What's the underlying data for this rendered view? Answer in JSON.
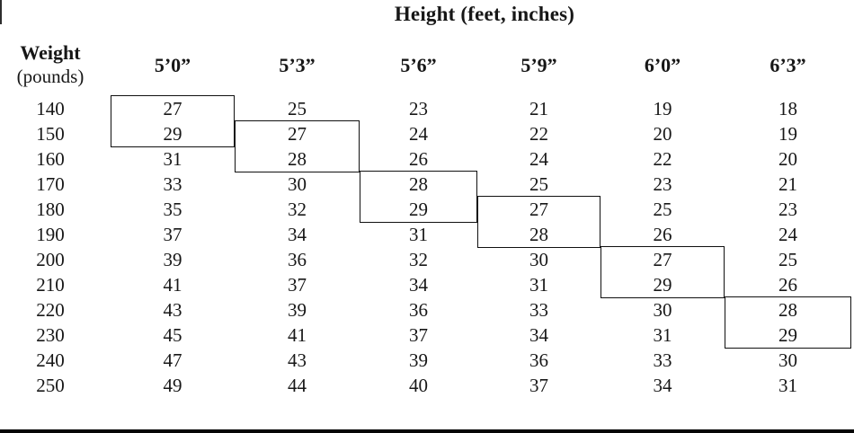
{
  "weight_header": {
    "line1": "Weight",
    "line2": "(pounds)"
  },
  "chart_data": {
    "type": "table",
    "title": "Height (feet, inches)",
    "row_axis_label": "Weight (pounds)",
    "columns": [
      "5’0”",
      "5’3”",
      "5’6”",
      "5’9”",
      "6’0”",
      "6’3”"
    ],
    "weights": [
      140,
      150,
      160,
      170,
      180,
      190,
      200,
      210,
      220,
      230,
      240,
      250
    ],
    "values": [
      [
        27,
        25,
        23,
        21,
        19,
        18
      ],
      [
        29,
        27,
        24,
        22,
        20,
        19
      ],
      [
        31,
        28,
        26,
        24,
        22,
        20
      ],
      [
        33,
        30,
        28,
        25,
        23,
        21
      ],
      [
        35,
        32,
        29,
        27,
        25,
        23
      ],
      [
        37,
        34,
        31,
        28,
        26,
        24
      ],
      [
        39,
        36,
        32,
        30,
        27,
        25
      ],
      [
        41,
        37,
        34,
        31,
        29,
        26
      ],
      [
        43,
        39,
        36,
        33,
        30,
        28
      ],
      [
        45,
        41,
        37,
        34,
        31,
        29
      ],
      [
        47,
        43,
        39,
        36,
        33,
        30
      ],
      [
        49,
        44,
        40,
        37,
        34,
        31
      ]
    ],
    "highlight_boxes": [
      {
        "column": "5’0”",
        "col_index": 0,
        "weight_start": 140,
        "weight_end": 150,
        "row_start": 0,
        "row_end": 1,
        "boxed_values": [
          27,
          29
        ]
      },
      {
        "column": "5’3”",
        "col_index": 1,
        "weight_start": 150,
        "weight_end": 160,
        "row_start": 1,
        "row_end": 2,
        "boxed_values": [
          27,
          28
        ]
      },
      {
        "column": "5’6”",
        "col_index": 2,
        "weight_start": 170,
        "weight_end": 180,
        "row_start": 3,
        "row_end": 4,
        "boxed_values": [
          28,
          29
        ]
      },
      {
        "column": "5’9”",
        "col_index": 3,
        "weight_start": 180,
        "weight_end": 190,
        "row_start": 4,
        "row_end": 5,
        "boxed_values": [
          27,
          28
        ]
      },
      {
        "column": "6’0”",
        "col_index": 4,
        "weight_start": 200,
        "weight_end": 210,
        "row_start": 6,
        "row_end": 7,
        "boxed_values": [
          27,
          29
        ]
      },
      {
        "column": "6’3”",
        "col_index": 5,
        "weight_start": 220,
        "weight_end": 230,
        "row_start": 8,
        "row_end": 9,
        "boxed_values": [
          28,
          29
        ]
      }
    ]
  },
  "colors": {
    "background": "#ffffff",
    "text": "#171717",
    "box_border": "#101010"
  }
}
